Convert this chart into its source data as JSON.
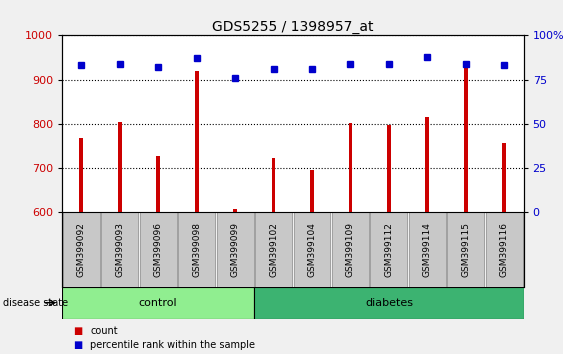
{
  "title": "GDS5255 / 1398957_at",
  "samples": [
    "GSM399092",
    "GSM399093",
    "GSM399096",
    "GSM399098",
    "GSM399099",
    "GSM399102",
    "GSM399104",
    "GSM399109",
    "GSM399112",
    "GSM399114",
    "GSM399115",
    "GSM399116"
  ],
  "counts": [
    768,
    805,
    728,
    920,
    607,
    722,
    695,
    803,
    797,
    815,
    930,
    757
  ],
  "percentiles": [
    83,
    84,
    82,
    87,
    76,
    81,
    81,
    84,
    84,
    88,
    84,
    83
  ],
  "ylim_left": [
    600,
    1000
  ],
  "ylim_right": [
    0,
    100
  ],
  "yticks_left": [
    600,
    700,
    800,
    900,
    1000
  ],
  "yticks_right": [
    0,
    25,
    50,
    75,
    100
  ],
  "groups": [
    {
      "label": "control",
      "indices": [
        0,
        1,
        2,
        3,
        4
      ],
      "color": "#90EE90"
    },
    {
      "label": "diabetes",
      "indices": [
        5,
        6,
        7,
        8,
        9,
        10,
        11
      ],
      "color": "#3CB371"
    }
  ],
  "bar_color": "#CC0000",
  "dot_color": "#0000CC",
  "col_bg": "#C8C8C8",
  "plot_bg": "#FFFFFF",
  "legend_count_color": "#CC0000",
  "legend_pct_color": "#0000CC",
  "fig_bg": "#F0F0F0"
}
